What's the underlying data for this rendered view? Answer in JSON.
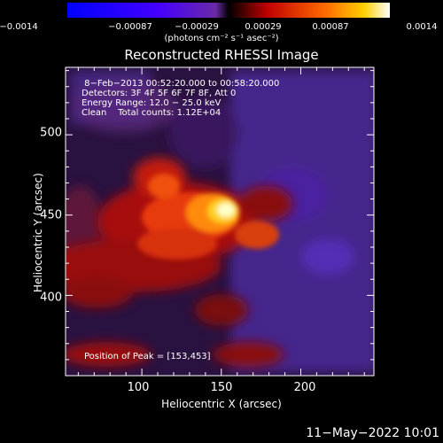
{
  "colorbar": {
    "ticks": [
      "−0.0014",
      "−0.00087",
      "−0.00029",
      "0.00029",
      "0.00087",
      "0.0014"
    ],
    "units_label": "(photons cm⁻² s⁻¹ asec⁻²)"
  },
  "chart_data": {
    "type": "heatmap",
    "title": "Reconstructed RHESSI Image",
    "xlabel": "Heliocentric X (arcsec)",
    "ylabel": "Heliocentric Y (arcsec)",
    "xlim": [
      52,
      246
    ],
    "ylim": [
      350,
      542
    ],
    "xticks": [
      "100",
      "150",
      "200"
    ],
    "yticks": [
      "400",
      "450",
      "500"
    ],
    "colorbar_range": [
      -0.0014,
      0.0014
    ],
    "peak": [
      153,
      453
    ],
    "info_lines": [
      " 8−Feb−2013 00:52:20.000 to 00:58:20.000",
      "Detectors: 3F 4F 5F 6F 7F 8F, Att 0",
      "Energy Range: 12.0 − 25.0 keV",
      "Clean    Total counts: 1.12E+04"
    ],
    "peak_label": "Position of Peak = [153,453]"
  },
  "footer": {
    "date": "11−May−2022 10:01"
  }
}
